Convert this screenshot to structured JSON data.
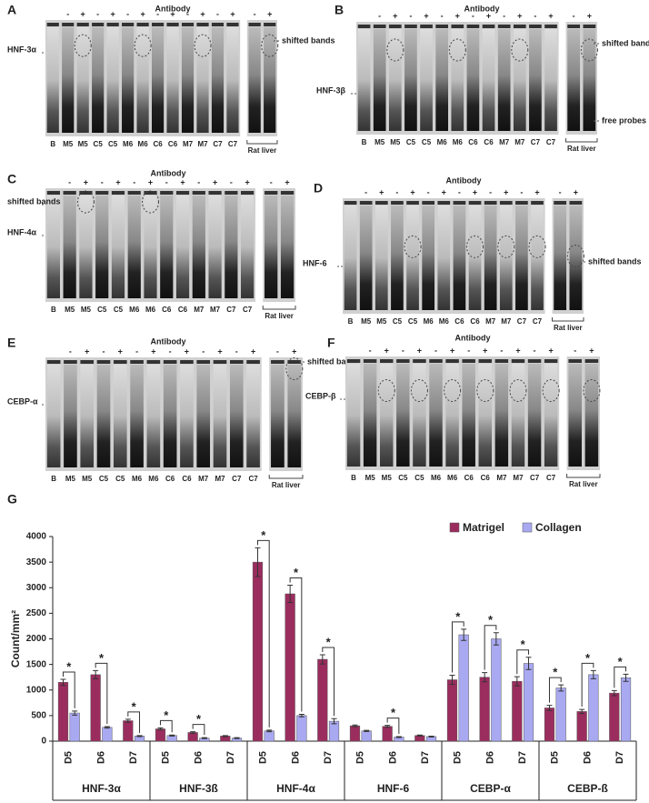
{
  "panels": [
    {
      "letter": "A",
      "title": "Antibody",
      "signs": [
        "-",
        "+",
        "-",
        "+",
        "-",
        "+",
        "-",
        "+",
        "-",
        "+",
        "-",
        "+",
        "-",
        "+"
      ],
      "lanes": [
        "B",
        "M5",
        "M5",
        "C5",
        "C5",
        "M6",
        "M6",
        "C6",
        "C6",
        "M7",
        "M7",
        "C7",
        "C7"
      ],
      "rat": "Rat liver",
      "left_labels": [
        "HNF-3α"
      ],
      "right_labels": [
        "shifted bands"
      ]
    },
    {
      "letter": "B",
      "title": "Antibody",
      "signs": [
        "-",
        "+",
        "-",
        "+",
        "-",
        "+",
        "-",
        "+",
        "-",
        "+",
        "-",
        "+",
        "-",
        "+"
      ],
      "lanes": [
        "B",
        "M5",
        "M5",
        "C5",
        "C5",
        "M6",
        "M6",
        "C6",
        "C6",
        "M7",
        "M7",
        "C7",
        "C7"
      ],
      "rat": "Rat liver",
      "left_labels": [
        "HNF-3β"
      ],
      "right_labels": [
        "shifted bands",
        "free probes"
      ]
    },
    {
      "letter": "C",
      "title": "Antibody",
      "signs": [
        "-",
        "+",
        "-",
        "+",
        "-",
        "+",
        "-",
        "+",
        "-",
        "+",
        "-",
        "+",
        "-",
        "+"
      ],
      "lanes": [
        "B",
        "M5",
        "M5",
        "C5",
        "C5",
        "M6",
        "M6",
        "C6",
        "C6",
        "M7",
        "M7",
        "C7",
        "C7"
      ],
      "rat": "Rat liver",
      "left_labels": [
        "shifted bands",
        "HNF-4α"
      ],
      "right_labels": []
    },
    {
      "letter": "D",
      "title": "Antibody",
      "signs": [
        "-",
        "+",
        "-",
        "+",
        "-",
        "+",
        "-",
        "+",
        "-",
        "+",
        "-",
        "+",
        "-",
        "+"
      ],
      "lanes": [
        "B",
        "M5",
        "M5",
        "C5",
        "C5",
        "M6",
        "M6",
        "C6",
        "C6",
        "M7",
        "M7",
        "C7",
        "C7"
      ],
      "rat": "Rat liver",
      "left_labels": [
        "HNF-6"
      ],
      "right_labels": [
        "shifted bands"
      ]
    },
    {
      "letter": "E",
      "title": "Antibody",
      "signs": [
        "-",
        "+",
        "-",
        "+",
        "-",
        "+",
        "-",
        "+",
        "-",
        "+",
        "-",
        "+",
        "-",
        "+"
      ],
      "lanes": [
        "B",
        "M5",
        "M5",
        "C5",
        "C5",
        "M6",
        "M6",
        "C6",
        "C6",
        "M7",
        "M7",
        "C7",
        "C7"
      ],
      "rat": "Rat liver",
      "left_labels": [
        "CEBP-α"
      ],
      "right_labels": [
        "shifted bands"
      ]
    },
    {
      "letter": "F",
      "title": "Antibody",
      "signs": [
        "-",
        "+",
        "-",
        "+",
        "-",
        "+",
        "-",
        "+",
        "-",
        "+",
        "-",
        "+",
        "-",
        "+"
      ],
      "lanes": [
        "B",
        "M5",
        "M5",
        "C5",
        "C5",
        "M6",
        "M6",
        "C6",
        "C6",
        "M7",
        "M7",
        "C7",
        "C7"
      ],
      "rat": "Rat liver",
      "left_labels": [
        "CEBP-β"
      ],
      "right_labels": []
    }
  ],
  "chart_data": {
    "type": "bar",
    "letter": "G",
    "ylabel": "Count/mm²",
    "categories": [
      "D5",
      "D6",
      "D7",
      "D5",
      "D6",
      "D7",
      "D5",
      "D6",
      "D7",
      "D5",
      "D6",
      "D7",
      "D5",
      "D6",
      "D7",
      "D5",
      "D6",
      "D7"
    ],
    "group_labels": [
      "HNF-3α",
      "HNF-3ß",
      "HNF-4α",
      "HNF-6",
      "CEBP-α",
      "CEBP-ß"
    ],
    "series": [
      {
        "name": "Matrigel",
        "color": "#9b2d5e",
        "values": [
          1150,
          1300,
          400,
          240,
          170,
          100,
          3500,
          2880,
          1600,
          300,
          290,
          110,
          1200,
          1250,
          1170,
          650,
          580,
          940
        ],
        "errors": [
          60,
          80,
          30,
          20,
          15,
          10,
          280,
          170,
          90,
          15,
          20,
          10,
          90,
          90,
          90,
          50,
          40,
          50
        ]
      },
      {
        "name": "Collagen",
        "color": "#a9a9f2",
        "values": [
          550,
          270,
          100,
          110,
          60,
          60,
          200,
          500,
          390,
          200,
          80,
          90,
          2080,
          2000,
          1520,
          1040,
          1300,
          1240
        ],
        "errors": [
          40,
          15,
          10,
          10,
          8,
          8,
          15,
          25,
          50,
          12,
          8,
          8,
          110,
          120,
          120,
          60,
          80,
          70
        ]
      }
    ],
    "significance": [
      "*",
      "*",
      "*",
      "*",
      "*",
      null,
      "*",
      "*",
      "*",
      null,
      "*",
      null,
      "*",
      "*",
      "*",
      "*",
      "*",
      "*"
    ],
    "ylim": [
      0,
      4000
    ],
    "yticks": [
      0,
      500,
      1000,
      1500,
      2000,
      2500,
      3000,
      3500,
      4000
    ],
    "grid": false,
    "legend": "top-right"
  }
}
